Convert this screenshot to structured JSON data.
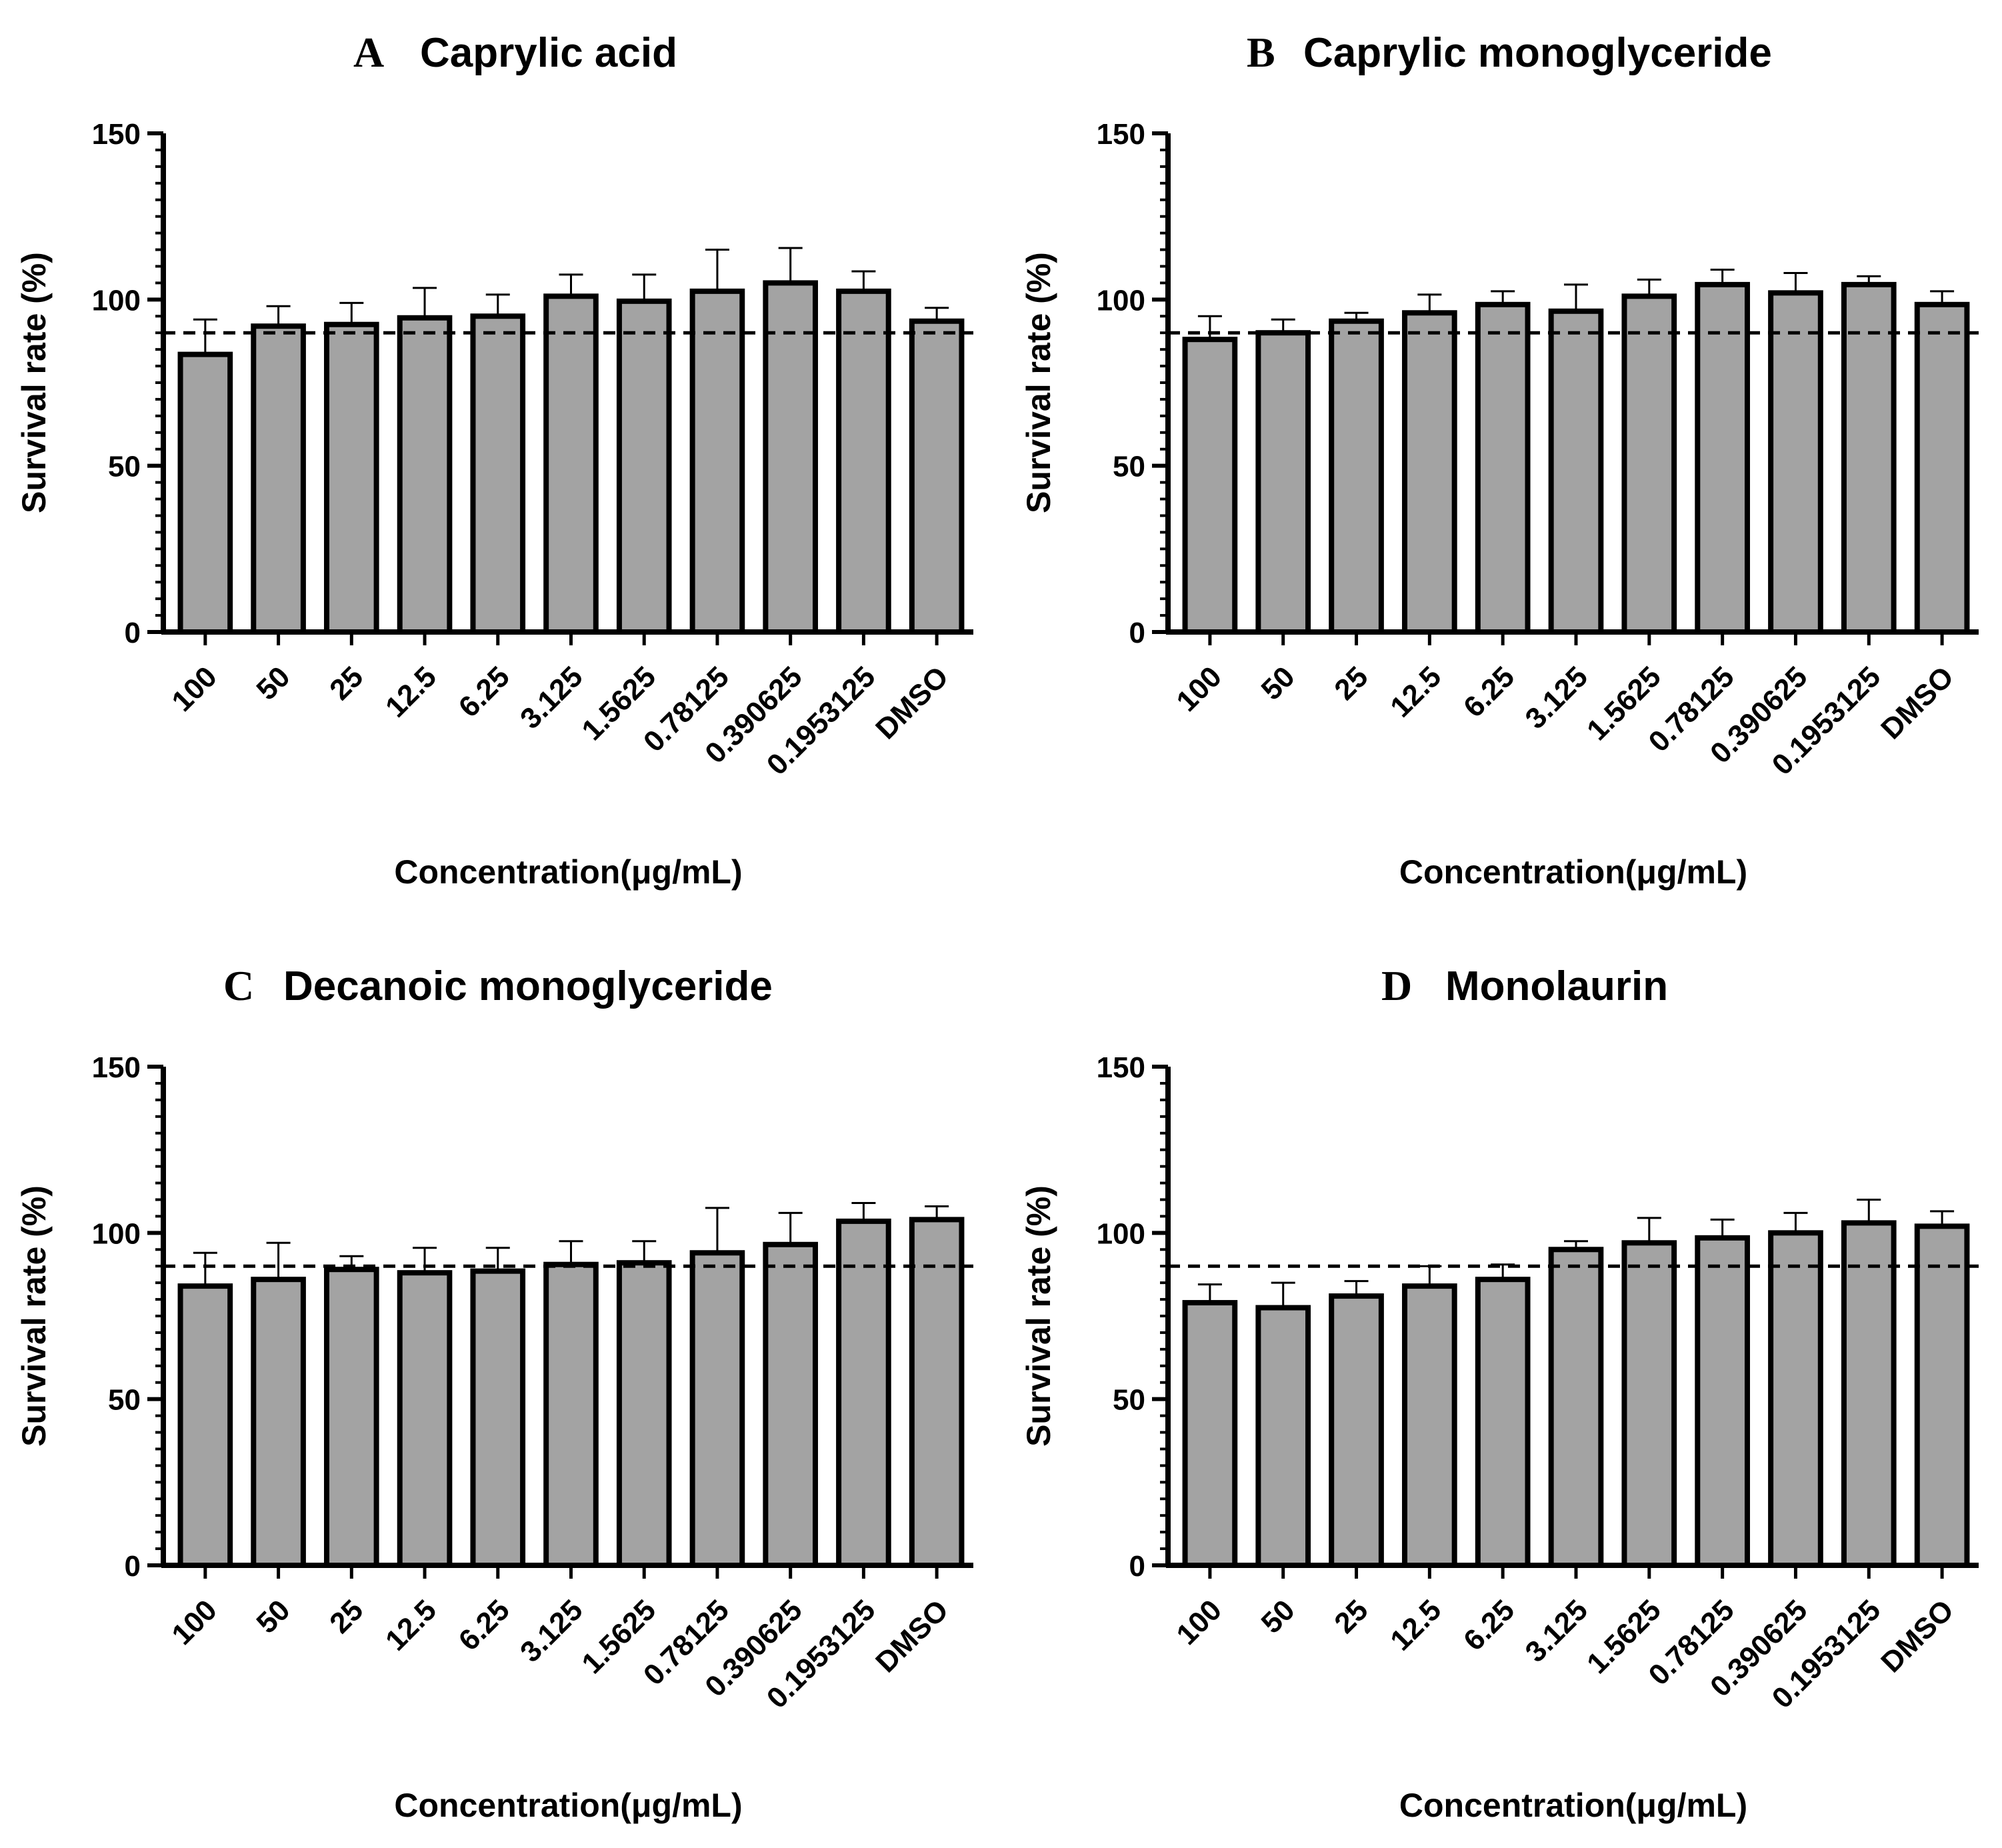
{
  "colors": {
    "bar_fill": "#a3a3a3",
    "bar_stroke": "#000000",
    "axis": "#000000",
    "reference_line": "#000000"
  },
  "chart_data": [
    {
      "panel": "A",
      "type": "bar",
      "title": "Caprylic acid",
      "xlabel": "Concentration(μg/mL)",
      "ylabel": "Survival rate (%)",
      "ylim": [
        0,
        150
      ],
      "yticks": [
        0,
        50,
        100,
        150
      ],
      "reference_line": 90,
      "categories": [
        "100",
        "50",
        "25",
        "12.5",
        "6.25",
        "3.125",
        "1.5625",
        "0.78125",
        "0.390625",
        "0.1953125",
        "DMSO"
      ],
      "values": [
        83.5,
        92,
        92.5,
        94.5,
        95,
        101,
        99.5,
        102.5,
        105,
        102.5,
        93.5
      ],
      "errors": [
        10.5,
        6,
        6.5,
        9,
        6.5,
        6.5,
        8,
        12.5,
        10.5,
        6,
        4
      ]
    },
    {
      "panel": "B",
      "type": "bar",
      "title": "Caprylic monoglyceride",
      "xlabel": "Concentration(μg/mL)",
      "ylabel": "Survival rate (%)",
      "ylim": [
        0,
        150
      ],
      "yticks": [
        0,
        50,
        100,
        150
      ],
      "reference_line": 90,
      "categories": [
        "100",
        "50",
        "25",
        "12.5",
        "6.25",
        "3.125",
        "1.5625",
        "0.78125",
        "0.390625",
        "0.1953125",
        "DMSO"
      ],
      "values": [
        88,
        90,
        93.5,
        96,
        98.5,
        96.5,
        101,
        104.5,
        102,
        104.5,
        98.5
      ],
      "errors": [
        7,
        4,
        2.5,
        5.5,
        4,
        8,
        5,
        4.5,
        6,
        2.5,
        4
      ]
    },
    {
      "panel": "C",
      "type": "bar",
      "title": "Decanoic monoglyceride",
      "xlabel": "Concentration(μg/mL)",
      "ylabel": "Survival rate (%)",
      "ylim": [
        0,
        150
      ],
      "yticks": [
        0,
        50,
        100,
        150
      ],
      "reference_line": 90,
      "categories": [
        "100",
        "50",
        "25",
        "12.5",
        "6.25",
        "3.125",
        "1.5625",
        "0.78125",
        "0.390625",
        "0.1953125",
        "DMSO"
      ],
      "values": [
        84,
        86,
        89,
        88,
        88.5,
        90.5,
        91,
        94,
        96.5,
        103.5,
        104
      ],
      "errors": [
        10,
        11,
        4,
        7.5,
        7,
        7,
        6.5,
        13.5,
        9.5,
        5.5,
        4
      ]
    },
    {
      "panel": "D",
      "type": "bar",
      "title": "Monolaurin",
      "xlabel": "Concentration(μg/mL)",
      "ylabel": "Survival rate (%)",
      "ylim": [
        0,
        150
      ],
      "yticks": [
        0,
        50,
        100,
        150
      ],
      "reference_line": 90,
      "categories": [
        "100",
        "50",
        "25",
        "12.5",
        "6.25",
        "3.125",
        "1.5625",
        "0.78125",
        "0.390625",
        "0.1953125",
        "DMSO"
      ],
      "values": [
        79,
        77.5,
        81,
        84,
        86,
        95,
        97,
        98.5,
        100,
        103,
        102
      ],
      "errors": [
        5.5,
        7.5,
        4.5,
        6,
        4.5,
        2.5,
        7.5,
        5.5,
        6,
        7,
        4.5
      ]
    }
  ]
}
